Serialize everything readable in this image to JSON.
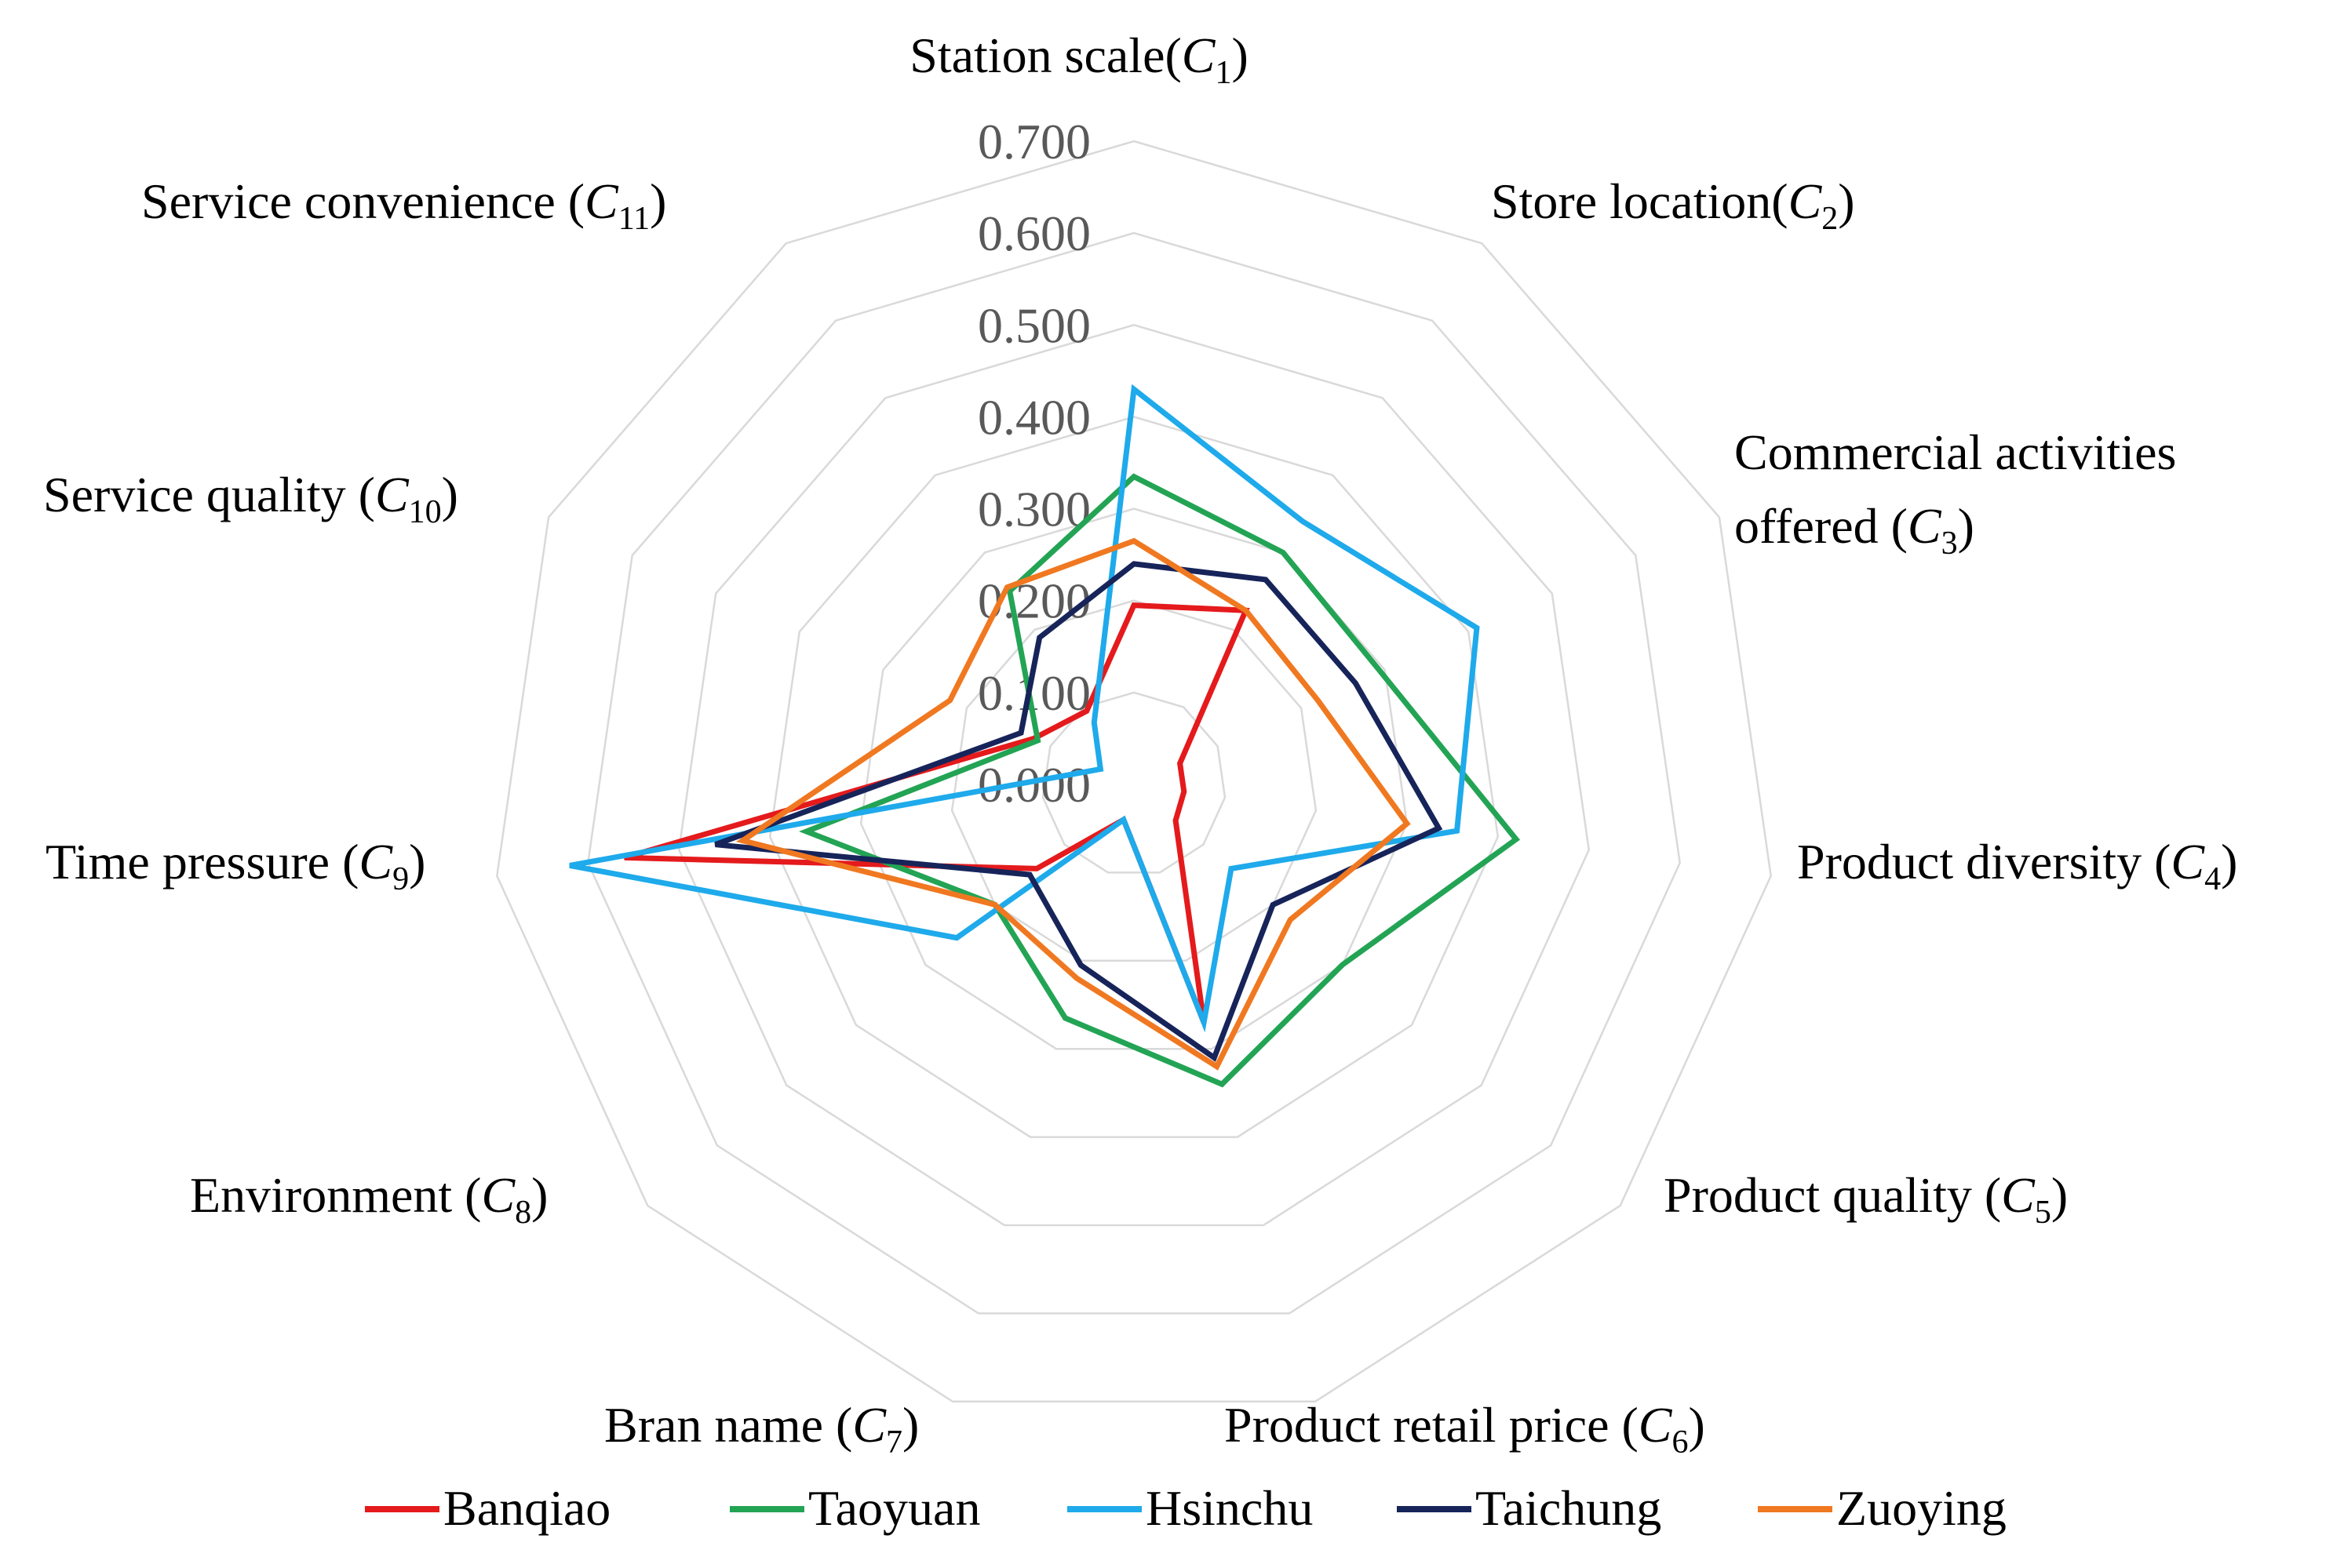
{
  "chart_data": {
    "type": "radar",
    "axes": [
      {
        "name": "Station scale",
        "sub": "1"
      },
      {
        "name": "Store location",
        "sub": "2"
      },
      {
        "name": "Commercial activities",
        "name2": "offered ",
        "sub": "3"
      },
      {
        "name": "Product diversity ",
        "sub": "4"
      },
      {
        "name": "Product quality ",
        "sub": "5"
      },
      {
        "name": "Product retail price ",
        "sub": "6"
      },
      {
        "name": "Bran name ",
        "sub": "7"
      },
      {
        "name": "Environment ",
        "sub": "8"
      },
      {
        "name": "Time pressure ",
        "sub": "9"
      },
      {
        "name": "Service quality ",
        "sub": "10"
      },
      {
        "name": "Service convenience ",
        "sub": "11"
      }
    ],
    "ticks": [
      "0.000",
      "0.100",
      "0.200",
      "0.300",
      "0.400",
      "0.500",
      "0.600",
      "0.700"
    ],
    "range": [
      0,
      0.7
    ],
    "series": [
      {
        "name": "Banqiao",
        "color": "#e41a1c",
        "values": [
          0.195,
          0.225,
          0.055,
          0.055,
          0.06,
          0.27,
          0.04,
          0.14,
          0.56,
          0.12,
          0.095
        ]
      },
      {
        "name": "Taoyuan",
        "color": "#23a455",
        "values": [
          0.335,
          0.3,
          0.295,
          0.42,
          0.3,
          0.34,
          0.265,
          0.2,
          0.36,
          0.115,
          0.25
        ]
      },
      {
        "name": "Hsinchu",
        "color": "#1eaaeb",
        "values": [
          0.43,
          0.34,
          0.41,
          0.355,
          0.14,
          0.27,
          0.04,
          0.255,
          0.62,
          0.04,
          0.08
        ]
      },
      {
        "name": "Taichung",
        "color": "#17245a",
        "values": [
          0.24,
          0.265,
          0.265,
          0.335,
          0.2,
          0.31,
          0.205,
          0.15,
          0.46,
          0.135,
          0.19
        ]
      },
      {
        "name": "Zuoying",
        "color": "#f07820",
        "values": [
          0.265,
          0.225,
          0.22,
          0.3,
          0.225,
          0.32,
          0.22,
          0.2,
          0.43,
          0.22,
          0.255
        ]
      }
    ]
  }
}
